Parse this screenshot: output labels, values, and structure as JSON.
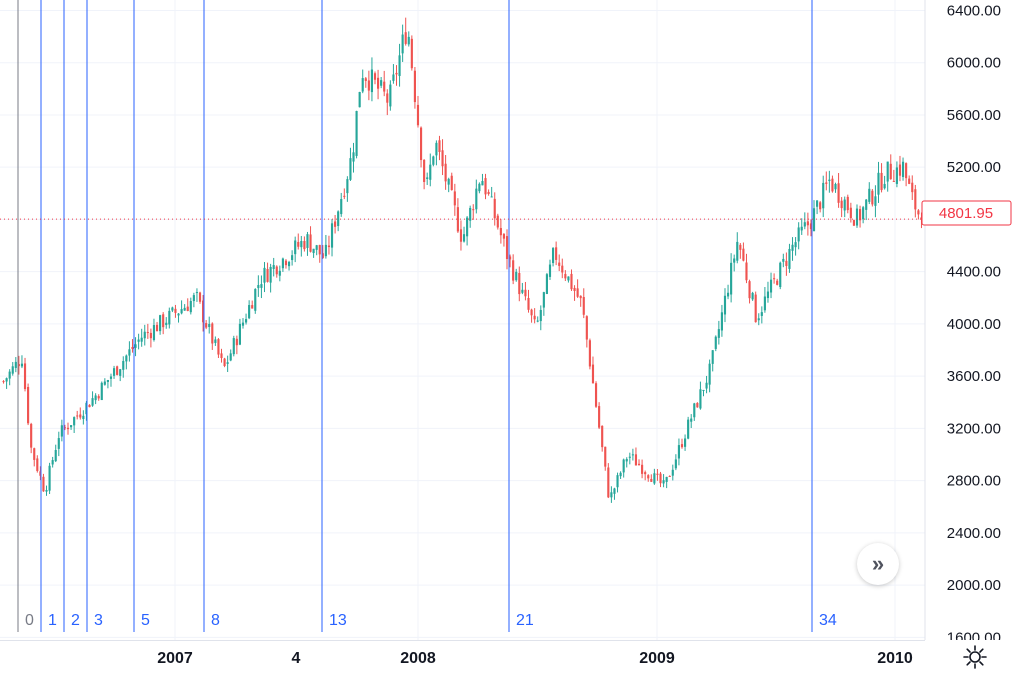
{
  "chart_data": {
    "type": "candlestick",
    "y_axis": {
      "position": "right",
      "ticks": [
        "6400.00",
        "6000.00",
        "5600.00",
        "5200.00",
        "4800.00",
        "4400.00",
        "4000.00",
        "3600.00",
        "3200.00",
        "2800.00",
        "2400.00",
        "2000.00",
        "1600.00"
      ],
      "range": [
        1580,
        6480
      ]
    },
    "x_axis": {
      "labels": [
        "2007",
        "4",
        "2008",
        "2009",
        "2010"
      ]
    },
    "last_price": "4801.95",
    "last_price_color": "#f23645",
    "up_color": "#26a69a",
    "down_color": "#ef5350",
    "fibonacci_time_zones": {
      "labels": [
        "0",
        "1",
        "2",
        "3",
        "5",
        "8",
        "13",
        "21",
        "34"
      ],
      "base_line_color": "#787b86",
      "line_color": "#2962ff"
    },
    "approx_series": {
      "x_fraction": [
        0,
        0.02,
        0.03,
        0.045,
        0.06,
        0.1,
        0.15,
        0.21,
        0.24,
        0.28,
        0.33,
        0.35,
        0.38,
        0.39,
        0.42,
        0.44,
        0.46,
        0.47,
        0.5,
        0.52,
        0.55,
        0.58,
        0.6,
        0.63,
        0.66,
        0.68,
        0.72,
        0.75,
        0.77,
        0.8,
        0.82,
        0.86,
        0.88,
        0.9,
        0.93,
        0.96,
        0.98,
        0.99,
        1.0
      ],
      "close": [
        3560,
        3750,
        3050,
        2720,
        3150,
        3450,
        3900,
        4200,
        3650,
        4350,
        4650,
        4500,
        5300,
        5950,
        5700,
        6300,
        5000,
        5400,
        4650,
        5150,
        4500,
        3950,
        4550,
        4150,
        2650,
        3000,
        2750,
        3300,
        3650,
        4650,
        4050,
        4600,
        4800,
        5100,
        4800,
        5150,
        5200,
        4950,
        4801.95
      ]
    }
  },
  "ui": {
    "scroll_button_icon": "double-chevron-right-icon",
    "settings_icon": "gear-icon"
  }
}
